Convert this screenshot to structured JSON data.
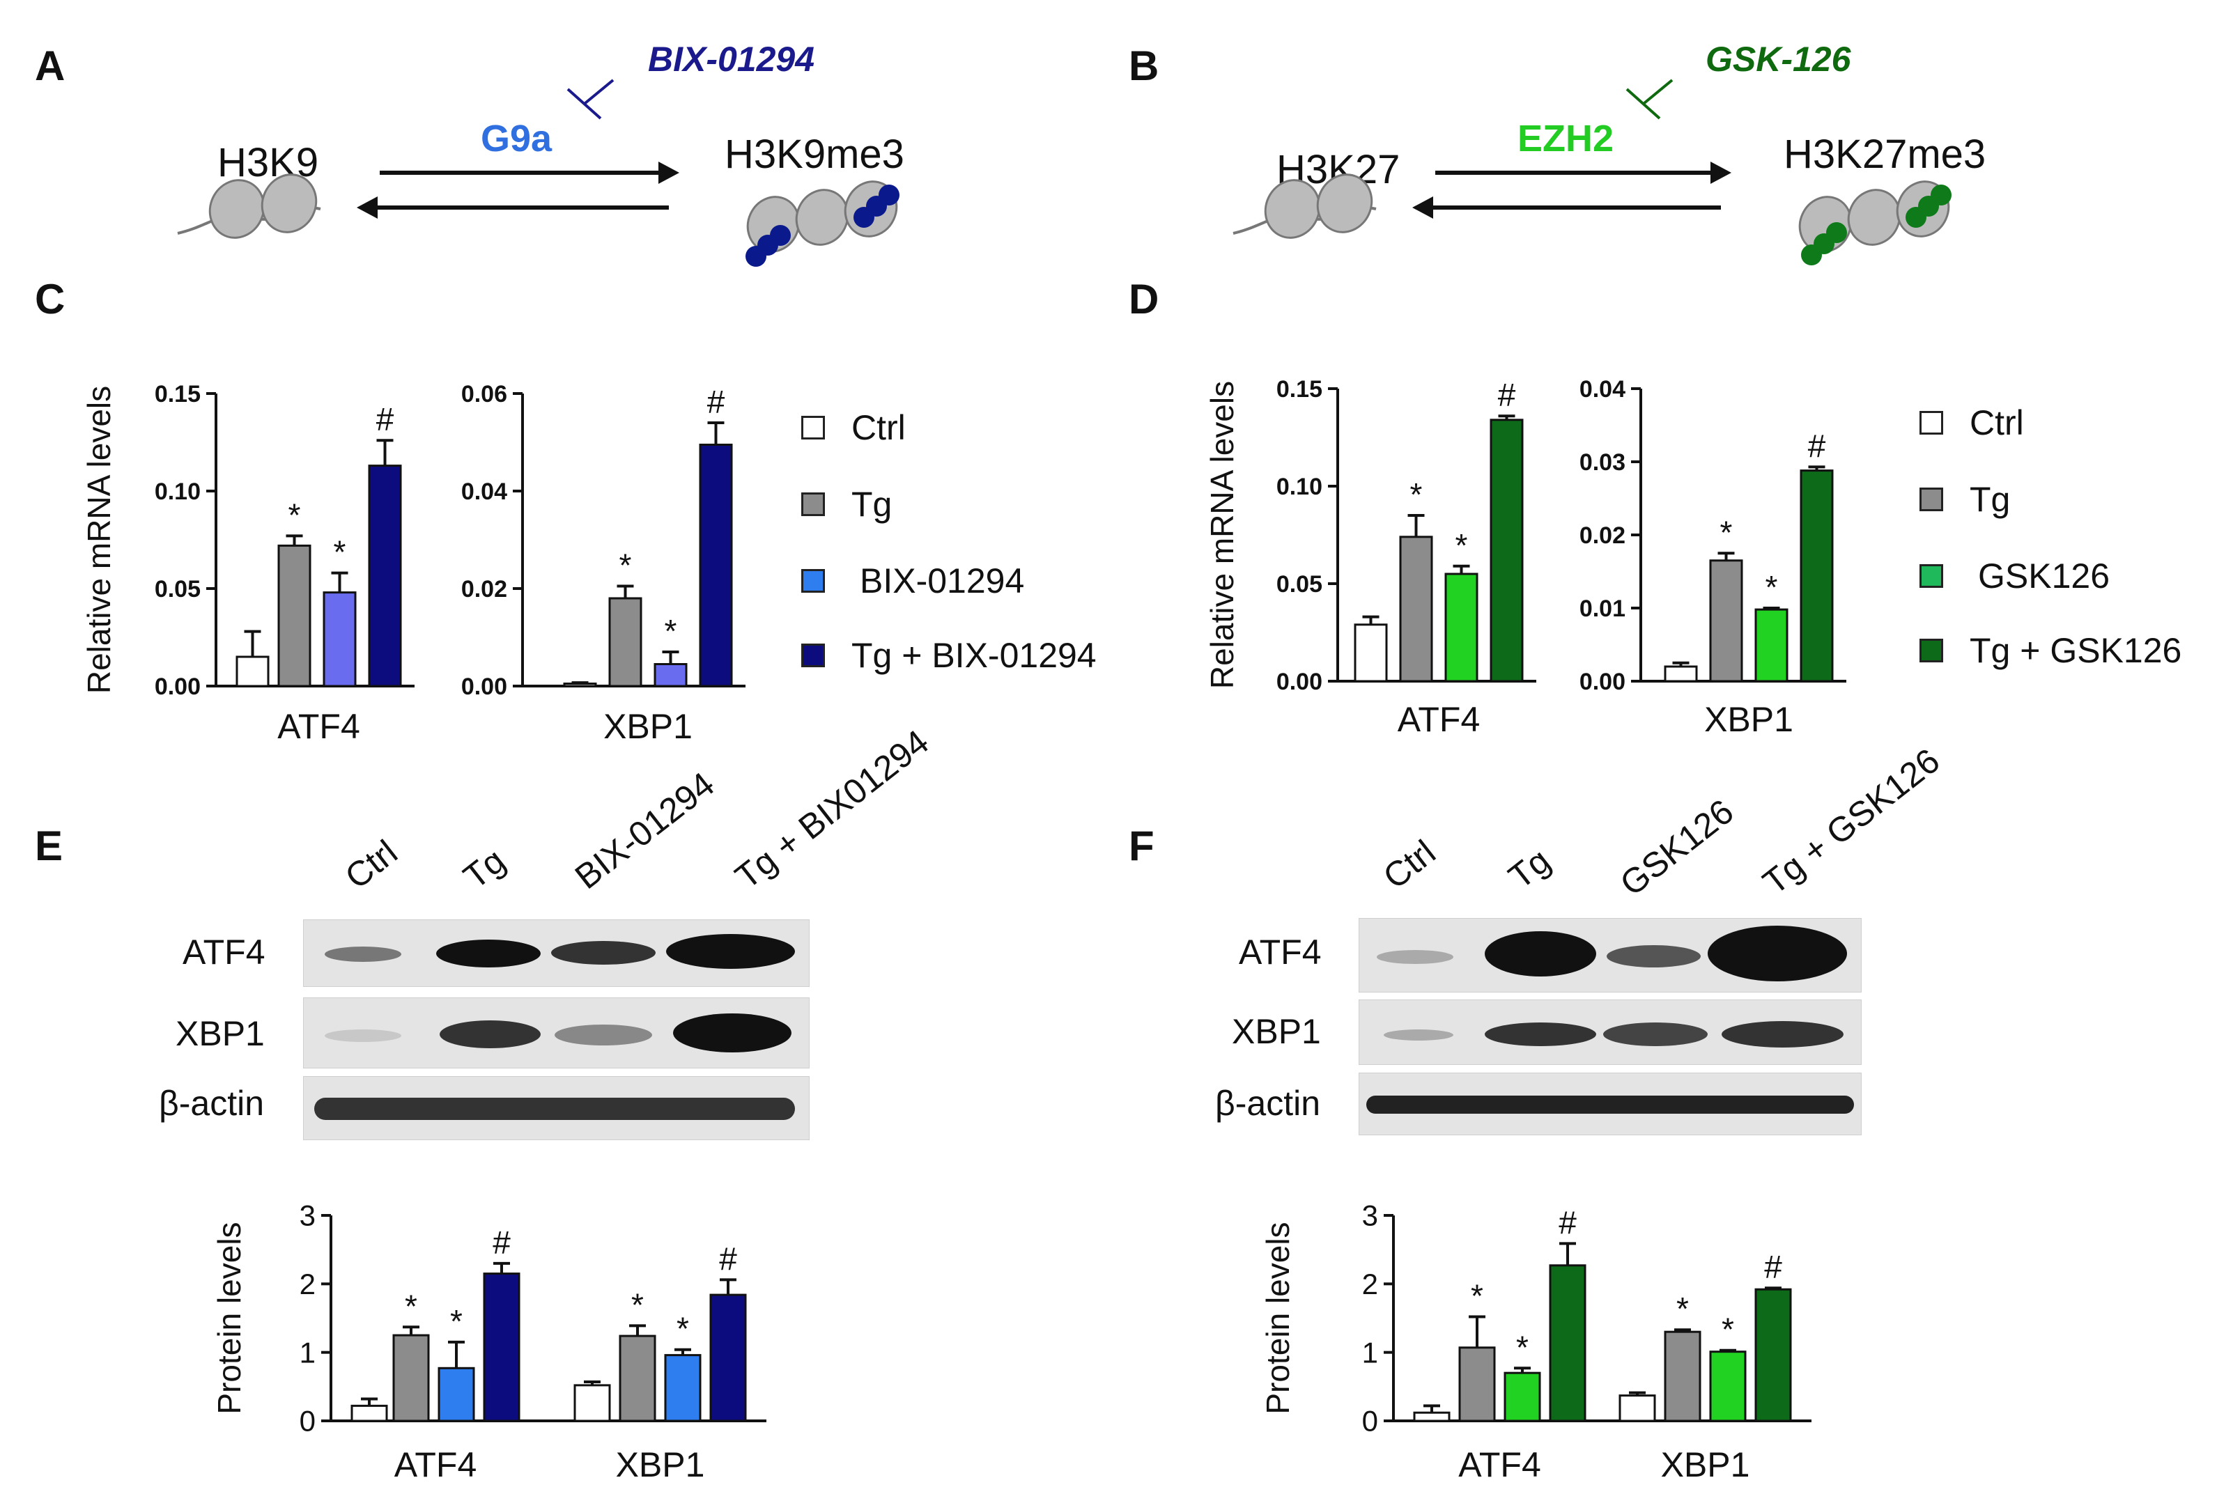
{
  "panel_labels": [
    "A",
    "B",
    "C",
    "D",
    "E",
    "F"
  ],
  "schemes": [
    {
      "substrate": "H3K9",
      "enzyme": "G9a",
      "inhibitor": "BIX-01294",
      "product": "H3K9me3",
      "colors": {
        "enzyme": "#2f6fe0",
        "inhibitor": "#1a1a8c",
        "marks": "#0a1a8c"
      }
    },
    {
      "substrate": "H3K27",
      "enzyme": "EZH2",
      "inhibitor": "GSK-126",
      "product": "H3K27me3",
      "colors": {
        "enzyme": "#22cc22",
        "inhibitor": "#0f6a0f",
        "marks": "#0e7a1a"
      }
    }
  ],
  "legend_C": [
    "Ctrl",
    "Tg",
    "BIX-01294",
    "Tg + BIX-01294"
  ],
  "legend_D": [
    "Ctrl",
    "Tg",
    "GSK126",
    "Tg + GSK126"
  ],
  "colors_C": [
    "#ffffff",
    "#8c8c8c",
    "#6a6cf0",
    "#0c0c7e"
  ],
  "colors_E": [
    "#ffffff",
    "#8c8c8c",
    "#2f7ef0",
    "#0c0c7e"
  ],
  "colors_D": [
    "#ffffff",
    "#8c8c8c",
    "#22d222",
    "#0c6a18"
  ],
  "legend_D_swatch3": "#1fb85a",
  "blot_E": {
    "lanes": [
      "Ctrl",
      "Tg",
      "BIX-01294",
      "Tg + BIX01294"
    ],
    "rows": [
      "ATF4",
      "XBP1",
      "β-actin"
    ]
  },
  "blot_F": {
    "lanes": [
      "Ctrl",
      "Tg",
      "GSK126",
      "Tg + GSK126"
    ],
    "rows": [
      "ATF4",
      "XBP1",
      "β-actin"
    ]
  },
  "chart_data": [
    {
      "id": "C-ATF4",
      "type": "bar",
      "ylabel": "Relative mRNA levels",
      "xlabel": "ATF4",
      "ylim": [
        0,
        0.15
      ],
      "yticks": [
        "0.00",
        "0.05",
        "0.10",
        "0.15"
      ],
      "categories": [
        "Ctrl",
        "Tg",
        "BIX-01294",
        "Tg + BIX-01294"
      ],
      "values": [
        0.015,
        0.072,
        0.048,
        0.113
      ],
      "errors": [
        0.013,
        0.005,
        0.01,
        0.013
      ],
      "annotations": [
        "",
        "*",
        "*",
        "#"
      ]
    },
    {
      "id": "C-XBP1",
      "type": "bar",
      "ylabel": "",
      "xlabel": "XBP1",
      "ylim": [
        0,
        0.06
      ],
      "yticks": [
        "0.00",
        "0.02",
        "0.04",
        "0.06"
      ],
      "categories": [
        "Ctrl",
        "Tg",
        "BIX-01294",
        "Tg + BIX-01294"
      ],
      "values": [
        0.0005,
        0.018,
        0.0045,
        0.0495
      ],
      "errors": [
        0.0002,
        0.0025,
        0.0025,
        0.0045
      ],
      "annotations": [
        "",
        "*",
        "*",
        "#"
      ]
    },
    {
      "id": "D-ATF4",
      "type": "bar",
      "ylabel": "Relative mRNA levels",
      "xlabel": "ATF4",
      "ylim": [
        0,
        0.15
      ],
      "yticks": [
        "0.00",
        "0.05",
        "0.10",
        "0.15"
      ],
      "categories": [
        "Ctrl",
        "Tg",
        "GSK126",
        "Tg + GSK126"
      ],
      "values": [
        0.029,
        0.074,
        0.055,
        0.134
      ],
      "errors": [
        0.004,
        0.011,
        0.004,
        0.002
      ],
      "annotations": [
        "",
        "*",
        "*",
        "#"
      ]
    },
    {
      "id": "D-XBP1",
      "type": "bar",
      "ylabel": "",
      "xlabel": "XBP1",
      "ylim": [
        0,
        0.04
      ],
      "yticks": [
        "0.00",
        "0.01",
        "0.02",
        "0.03",
        "0.04"
      ],
      "categories": [
        "Ctrl",
        "Tg",
        "GSK126",
        "Tg + GSK126"
      ],
      "values": [
        0.002,
        0.0165,
        0.0098,
        0.0288
      ],
      "errors": [
        0.0005,
        0.001,
        0.0002,
        0.0005
      ],
      "annotations": [
        "",
        "*",
        "*",
        "#"
      ]
    },
    {
      "id": "E-protein",
      "type": "bar",
      "ylabel": "Protein levels",
      "ylim": [
        0,
        3
      ],
      "yticks": [
        "0",
        "1",
        "2",
        "3"
      ],
      "groups": [
        "ATF4",
        "XBP1"
      ],
      "categories": [
        "Ctrl",
        "Tg",
        "BIX-01294",
        "Tg + BIX-01294"
      ],
      "series_values": [
        [
          0.22,
          1.25,
          0.77,
          2.15
        ],
        [
          0.52,
          1.24,
          0.96,
          1.84
        ]
      ],
      "series_errors": [
        [
          0.1,
          0.12,
          0.38,
          0.15
        ],
        [
          0.05,
          0.15,
          0.08,
          0.22
        ]
      ],
      "annotations": [
        "",
        "*",
        "*",
        "#"
      ]
    },
    {
      "id": "F-protein",
      "type": "bar",
      "ylabel": "Protein levels",
      "ylim": [
        0,
        3
      ],
      "yticks": [
        "0",
        "1",
        "2",
        "3"
      ],
      "groups": [
        "ATF4",
        "XBP1"
      ],
      "categories": [
        "Ctrl",
        "Tg",
        "GSK126",
        "Tg + GSK126"
      ],
      "series_values": [
        [
          0.12,
          1.07,
          0.7,
          2.27
        ],
        [
          0.37,
          1.3,
          1.01,
          1.92
        ]
      ],
      "series_errors": [
        [
          0.1,
          0.45,
          0.07,
          0.32
        ],
        [
          0.04,
          0.03,
          0.02,
          0.02
        ]
      ],
      "annotations": [
        "",
        "*",
        "*",
        "#"
      ]
    }
  ]
}
